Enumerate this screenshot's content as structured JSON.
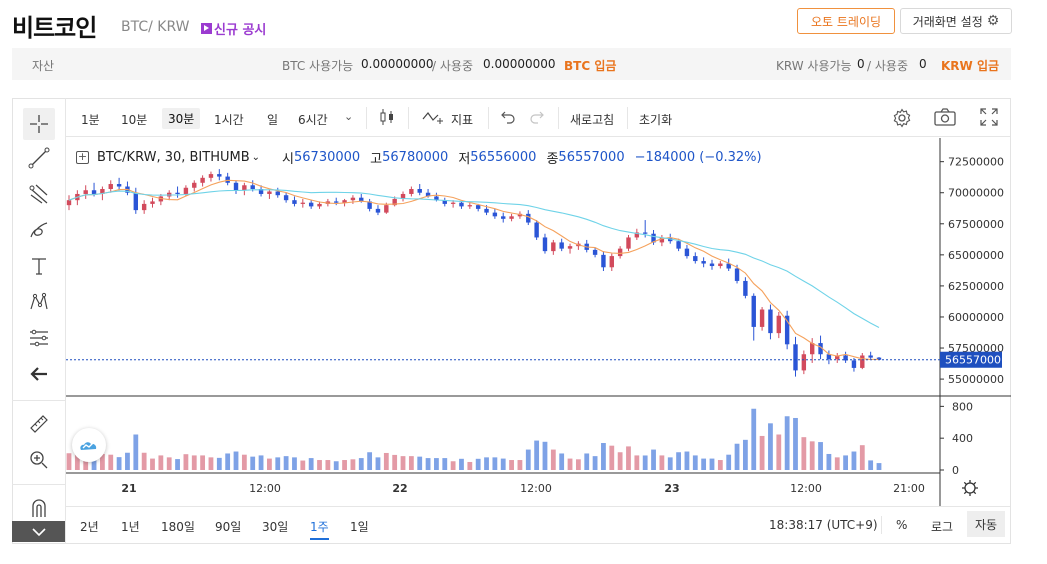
{
  "header": {
    "title": "비트코인",
    "pair": "BTC/ KRW",
    "notice": "신규 공시",
    "auto_trading": "오토 트레이딩",
    "screen_settings": "거래화면 설정"
  },
  "assets": {
    "label": "자산",
    "btc_available_label": "BTC 사용가능",
    "btc_available": "0.00000000",
    "btc_in_use_label": "/ 사용중",
    "btc_in_use": "0.00000000",
    "btc_deposit": "BTC 입금",
    "krw_available_label": "KRW 사용가능",
    "krw_available": "0",
    "krw_in_use_label": "/ 사용중",
    "krw_in_use": "0",
    "krw_deposit": "KRW 입금"
  },
  "toolbar": {
    "intervals": [
      "1분",
      "10분",
      "30분",
      "1시간",
      "일",
      "6시간"
    ],
    "selected_interval": "30분",
    "indicators": "지표",
    "refresh": "새로고침",
    "reset": "초기화"
  },
  "legend": {
    "symbol": "BTC/KRW, 30, BITHUMB",
    "open_label": "시",
    "open": "56730000",
    "high_label": "고",
    "high": "56780000",
    "low_label": "저",
    "low": "56556000",
    "close_label": "종",
    "close": "56557000",
    "change": "−184000 (−0.32%)"
  },
  "colors": {
    "up": "#d24a5c",
    "down": "#2b55d6",
    "ma_fast": "#f5a25d",
    "ma_slow": "#6fd3e8",
    "accent": "#e9741d",
    "price_tag": "#1e4fbf",
    "vol_up": "#e39aa6",
    "vol_down": "#7ea2e6"
  },
  "bottom": {
    "ranges": [
      "2년",
      "1년",
      "180일",
      "90일",
      "30일",
      "1주",
      "1일"
    ],
    "selected_range": "1주",
    "time": "18:38:17 (UTC+9)",
    "percent": "%",
    "log": "로그",
    "auto": "자동"
  },
  "chart_data": {
    "type": "candlestick",
    "price_axis_ticks": [
      72500000,
      70000000,
      67500000,
      65000000,
      62500000,
      60000000,
      57500000,
      55000000
    ],
    "volume_axis_ticks": [
      800,
      400,
      0
    ],
    "time_axis_labels": [
      "21",
      "12:00",
      "22",
      "12:00",
      "23",
      "12:00",
      "21:00"
    ],
    "current_price": 56557000,
    "current_price_label": "56557000",
    "ylim": [
      53800000,
      73600000
    ],
    "volume_ylim": [
      0,
      880
    ],
    "ohlc_approx": [
      [
        69000000,
        69800000,
        68600000,
        69400000
      ],
      [
        69400000,
        70200000,
        69000000,
        69900000
      ],
      [
        69900000,
        70600000,
        69500000,
        70200000
      ],
      [
        70200000,
        70800000,
        69700000,
        69900000
      ],
      [
        69900000,
        70500000,
        69400000,
        70300000
      ],
      [
        70300000,
        71000000,
        70000000,
        70700000
      ],
      [
        70700000,
        71200000,
        70200000,
        70500000
      ],
      [
        70500000,
        70900000,
        69800000,
        70000000
      ],
      [
        70000000,
        70400000,
        68300000,
        68600000
      ],
      [
        68600000,
        69400000,
        68300000,
        69100000
      ],
      [
        69100000,
        69600000,
        68800000,
        69300000
      ],
      [
        69300000,
        69900000,
        69000000,
        69700000
      ],
      [
        69700000,
        70200000,
        69400000,
        70000000
      ],
      [
        70000000,
        70500000,
        69600000,
        69900000
      ],
      [
        69900000,
        70600000,
        69700000,
        70400000
      ],
      [
        70400000,
        71000000,
        70100000,
        70800000
      ],
      [
        70800000,
        71400000,
        70500000,
        71200000
      ],
      [
        71200000,
        71700000,
        70900000,
        71500000
      ],
      [
        71500000,
        71900000,
        71000000,
        71300000
      ],
      [
        71300000,
        71600000,
        70600000,
        70800000
      ],
      [
        70800000,
        71000000,
        69900000,
        70200000
      ],
      [
        70200000,
        70800000,
        69800000,
        70600000
      ],
      [
        70600000,
        71000000,
        70100000,
        70300000
      ],
      [
        70300000,
        70600000,
        69700000,
        69900000
      ],
      [
        69900000,
        70300000,
        69500000,
        70100000
      ],
      [
        70100000,
        70400000,
        69600000,
        69800000
      ],
      [
        69800000,
        70000000,
        69200000,
        69400000
      ],
      [
        69400000,
        69700000,
        68900000,
        69100000
      ],
      [
        69100000,
        69500000,
        68800000,
        69200000
      ],
      [
        69200000,
        69400000,
        68700000,
        68900000
      ],
      [
        68900000,
        69300000,
        68700000,
        69100000
      ],
      [
        69100000,
        69500000,
        68900000,
        69300000
      ],
      [
        69300000,
        69600000,
        69000000,
        69200000
      ],
      [
        69200000,
        69500000,
        68900000,
        69400000
      ],
      [
        69400000,
        69800000,
        69100000,
        69600000
      ],
      [
        69600000,
        69900000,
        69200000,
        69300000
      ],
      [
        69300000,
        69500000,
        68500000,
        68700000
      ],
      [
        68700000,
        69000000,
        68200000,
        68400000
      ],
      [
        68400000,
        69200000,
        68300000,
        69000000
      ],
      [
        69000000,
        69700000,
        68900000,
        69500000
      ],
      [
        69500000,
        70100000,
        69300000,
        69900000
      ],
      [
        69900000,
        70500000,
        69700000,
        70300000
      ],
      [
        70300000,
        70700000,
        69800000,
        70000000
      ],
      [
        70000000,
        70300000,
        69600000,
        69700000
      ],
      [
        69700000,
        70000000,
        69300000,
        69400000
      ],
      [
        69400000,
        69600000,
        68900000,
        69100000
      ],
      [
        69100000,
        69400000,
        68800000,
        69200000
      ],
      [
        69200000,
        69300000,
        68700000,
        68900000
      ],
      [
        68900000,
        69200000,
        68700000,
        69000000
      ],
      [
        69000000,
        69100000,
        68500000,
        68700000
      ],
      [
        68700000,
        69000000,
        68200000,
        68400000
      ],
      [
        68400000,
        68700000,
        67900000,
        68100000
      ],
      [
        68100000,
        68400000,
        67600000,
        67900000
      ],
      [
        67900000,
        68300000,
        67700000,
        68100000
      ],
      [
        68100000,
        68500000,
        67900000,
        68300000
      ],
      [
        68300000,
        68600000,
        67400000,
        67600000
      ],
      [
        67600000,
        67800000,
        66200000,
        66400000
      ],
      [
        66400000,
        66700000,
        65100000,
        65300000
      ],
      [
        65300000,
        66200000,
        65000000,
        66000000
      ],
      [
        66000000,
        66300000,
        65300000,
        65500000
      ],
      [
        65500000,
        65900000,
        65100000,
        65700000
      ],
      [
        65700000,
        66100000,
        65400000,
        65900000
      ],
      [
        65900000,
        66200000,
        65200000,
        65400000
      ],
      [
        65400000,
        65600000,
        64800000,
        65000000
      ],
      [
        65000000,
        65300000,
        63700000,
        64000000
      ],
      [
        64000000,
        65100000,
        63700000,
        64900000
      ],
      [
        64900000,
        65700000,
        64700000,
        65500000
      ],
      [
        65500000,
        66600000,
        65300000,
        66400000
      ],
      [
        66400000,
        67100000,
        66200000,
        66800000
      ],
      [
        66800000,
        67800000,
        66400000,
        66700000
      ],
      [
        66700000,
        67000000,
        65800000,
        66000000
      ],
      [
        66000000,
        66600000,
        65700000,
        66400000
      ],
      [
        66400000,
        66700000,
        65900000,
        66100000
      ],
      [
        66100000,
        66300000,
        65300000,
        65500000
      ],
      [
        65500000,
        65800000,
        64700000,
        64900000
      ],
      [
        64900000,
        65200000,
        64300000,
        64500000
      ],
      [
        64500000,
        64800000,
        64000000,
        64300000
      ],
      [
        64300000,
        64600000,
        63800000,
        64100000
      ],
      [
        64100000,
        64500000,
        63900000,
        64300000
      ],
      [
        64300000,
        64700000,
        63700000,
        63900000
      ],
      [
        63900000,
        64200000,
        62700000,
        62900000
      ],
      [
        62900000,
        63200000,
        61500000,
        61700000
      ],
      [
        61700000,
        61900000,
        58100000,
        59200000
      ],
      [
        59200000,
        60800000,
        58900000,
        60600000
      ],
      [
        60600000,
        61000000,
        58200000,
        58700000
      ],
      [
        58700000,
        60400000,
        58300000,
        60100000
      ],
      [
        60100000,
        60500000,
        57400000,
        57800000
      ],
      [
        57800000,
        58400000,
        55200000,
        55700000
      ],
      [
        55700000,
        57300000,
        55400000,
        57000000
      ],
      [
        57000000,
        58300000,
        56300000,
        57900000
      ],
      [
        57900000,
        58500000,
        56600000,
        57000000
      ],
      [
        57000000,
        57300000,
        56200000,
        56600000
      ],
      [
        56600000,
        57100000,
        56300000,
        56900000
      ],
      [
        56900000,
        57200000,
        56300000,
        56500000
      ],
      [
        56500000,
        56700000,
        55600000,
        55900000
      ],
      [
        55900000,
        57100000,
        55800000,
        56900000
      ],
      [
        56900000,
        57200000,
        56600000,
        56730000
      ],
      [
        56730000,
        56780000,
        56556000,
        56557000
      ]
    ]
  }
}
